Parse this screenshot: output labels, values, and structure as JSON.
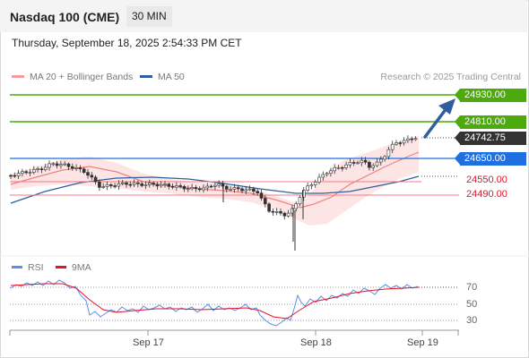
{
  "header": {
    "title": "Nasdaq 100 (CME)",
    "timeframe": "30 MIN"
  },
  "timestamp": "Thursday, September 18, 2025 2:54:33 PM CET",
  "legend": {
    "ma20": {
      "label": "MA 20 + Bollinger Bands",
      "color": "#f59b9b"
    },
    "ma50": {
      "label": "MA 50",
      "color": "#2f5e9e"
    }
  },
  "credit": "Research © 2025 Trading Central",
  "levels": [
    {
      "label": "24930.00",
      "kind": "resistance",
      "color": "#4caa0c"
    },
    {
      "label": "24810.00",
      "kind": "resistance",
      "color": "#4caa0c"
    },
    {
      "label": "24742.75",
      "kind": "last",
      "color": "#333333"
    },
    {
      "label": "24650.00",
      "kind": "pivot",
      "color": "#1f6fe0"
    },
    {
      "label": "24550.00",
      "kind": "support",
      "color": "#e0132b"
    },
    {
      "label": "24490.00",
      "kind": "support",
      "color": "#e0132b"
    }
  ],
  "rsi_panel": {
    "legend": [
      {
        "label": "RSI",
        "color": "#5b8fe0"
      },
      {
        "label": "9MA",
        "color": "#e0132b"
      }
    ],
    "levels": [
      "70",
      "50",
      "30"
    ]
  },
  "x_axis": [
    "Sep 17",
    "Sep 18",
    "Sep 19"
  ]
}
